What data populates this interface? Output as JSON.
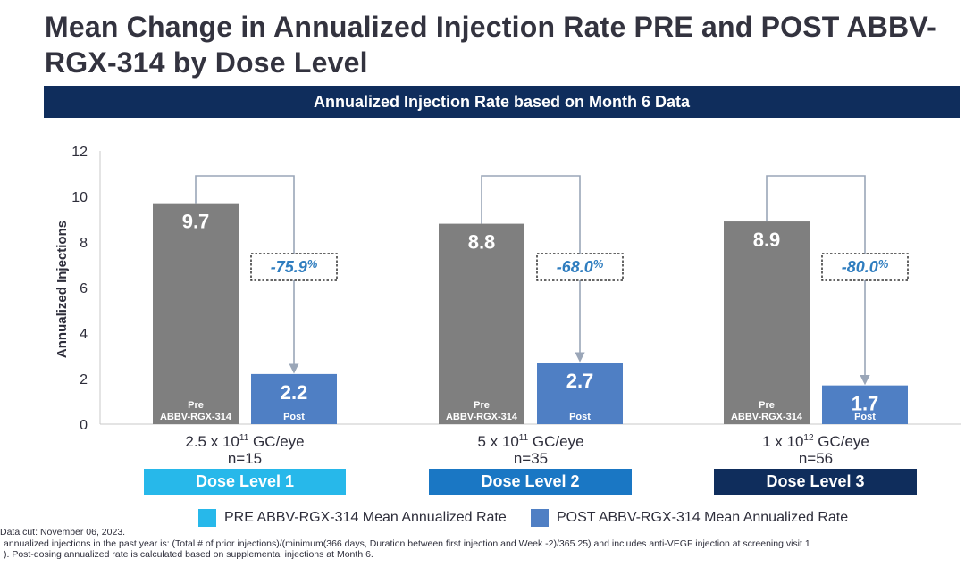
{
  "title": "Mean Change in Annualized Injection Rate PRE and POST ABBV-RGX-314 by Dose Level",
  "subtitle": "Annualized Injection Rate based on Month 6 Data",
  "colors": {
    "header_bg": "#0f2d5c",
    "pre_bar": "#7f7f7f",
    "post_bar": "#4f7fc4",
    "dose1": "#27b8ea",
    "dose2": "#1a77c4",
    "dose3": "#0f2d5c",
    "change_text": "#2f7dbf"
  },
  "chart_data": {
    "type": "bar",
    "ylabel": "Annualized Injections",
    "ylim": [
      0,
      12
    ],
    "yticks": [
      "0",
      "2",
      "4",
      "6",
      "8",
      "10",
      "12"
    ],
    "series": [
      {
        "name": "PRE ABBV-RGX-314 Mean Annualized Rate",
        "values": [
          9.7,
          8.8,
          8.9
        ]
      },
      {
        "name": "POST ABBV-RGX-314 Mean Annualized Rate",
        "values": [
          2.2,
          2.7,
          1.7
        ]
      }
    ],
    "pre_bar_label_line1": "Pre",
    "pre_bar_label_line2": "ABBV-RGX-314",
    "post_bar_label": "Post",
    "groups": [
      {
        "dose_base": "2.5 x 10",
        "dose_exp": "11",
        "dose_unit": " GC/eye",
        "n": "n=15",
        "dose_level": "Dose Level 1",
        "change_num": "-75.9",
        "change_pct": "%"
      },
      {
        "dose_base": "5 x 10",
        "dose_exp": "11",
        "dose_unit": " GC/eye",
        "n": "n=35",
        "dose_level": "Dose Level 2",
        "change_num": "-68.0",
        "change_pct": "%"
      },
      {
        "dose_base": "1 x 10",
        "dose_exp": "12",
        "dose_unit": " GC/eye",
        "n": "n=56",
        "dose_level": "Dose Level 3",
        "change_num": "-80.0",
        "change_pct": "%"
      }
    ],
    "legend_position": "bottom"
  },
  "footnotes": [
    "Data cut: November 06, 2023.",
    "annualized injections in the past year is: (Total # of prior injections)/(minimum(366 days, Duration between first injection and Week -2)/365.25) and includes anti-VEGF injection at screening visit 1",
    "). Post-dosing annualized rate is calculated based on supplemental injections at Month 6."
  ]
}
